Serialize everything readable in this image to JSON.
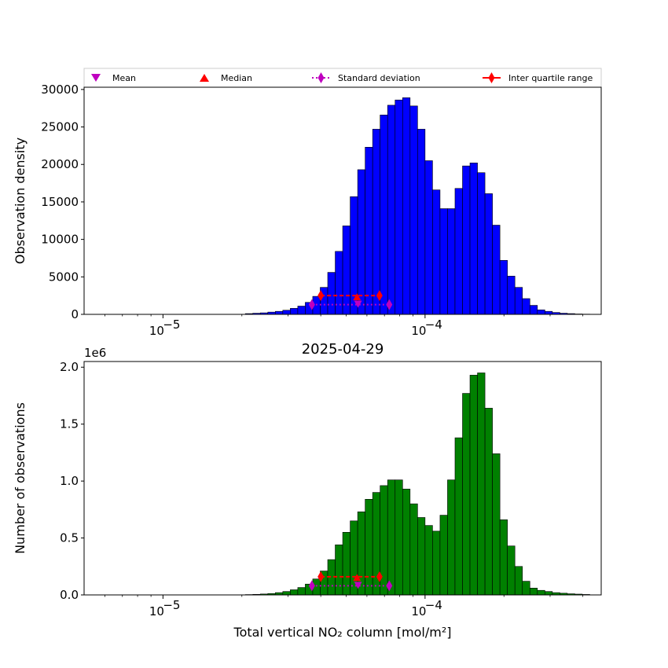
{
  "legend": {
    "location": "top, above upper panel",
    "entries": [
      {
        "label": "Mean",
        "marker": "triangle-down",
        "color": "#bf00bf"
      },
      {
        "label": "Median",
        "marker": "triangle-up",
        "color": "#ff0000"
      },
      {
        "label": "Standard deviation",
        "marker": "thin-diamond",
        "linestyle": "dotted",
        "color": "#bf00bf"
      },
      {
        "label": "Inter quartile range",
        "marker": "thin-diamond",
        "linestyle": "solid",
        "color": "#ff0000"
      }
    ]
  },
  "chart_data": [
    {
      "type": "bar",
      "title": "",
      "xlabel": "",
      "ylabel": "Observation density",
      "xscale": "log",
      "xlim": [
        5e-06,
        0.00047
      ],
      "ylim": [
        0,
        30300
      ],
      "yticks": [
        0,
        5000,
        10000,
        15000,
        20000,
        25000,
        30000
      ],
      "ytick_labels": [
        "0",
        "5000",
        "10000",
        "15000",
        "20000",
        "25000",
        "30000"
      ],
      "xticks": [
        1e-05,
        0.0001
      ],
      "xtick_labels": [
        "10",
        "10"
      ],
      "xtick_exponents": [
        "−5",
        "−4"
      ],
      "bar_color": "#0000ff",
      "edge_color": "#000000",
      "bins_per_decade": 35,
      "bins_start_exp": -5.2,
      "values": [
        0,
        0,
        0,
        0,
        0,
        0,
        0,
        0,
        0,
        0,
        0,
        0,
        0,
        0,
        0,
        0,
        0,
        0,
        100,
        150,
        200,
        300,
        400,
        550,
        800,
        1100,
        1600,
        2400,
        3600,
        5600,
        8400,
        11800,
        15700,
        19300,
        22300,
        24700,
        26600,
        27900,
        28600,
        28900,
        27800,
        24700,
        20500,
        16600,
        14100,
        14100,
        16800,
        19800,
        20200,
        18900,
        16100,
        11900,
        7200,
        5100,
        3600,
        2100,
        1200,
        600,
        400,
        250,
        150,
        100,
        50,
        30,
        0,
        0,
        0,
        0,
        0,
        0,
        0,
        0,
        0,
        0,
        0,
        0,
        0,
        0,
        0
      ],
      "stats": {
        "mean": {
          "x": 5.55e-05,
          "y": 1300
        },
        "median": {
          "x": 5.5e-05,
          "y": 2300
        },
        "std_dev": {
          "low": 3.7e-05,
          "high": 7.3e-05,
          "y": 1300
        },
        "iqr": {
          "q1": 4e-05,
          "q3": 6.7e-05,
          "y": 2500
        }
      }
    },
    {
      "type": "bar",
      "title": "2025-04-29",
      "xlabel": "Total vertical NO₂ column [mol/m²]",
      "ylabel": "Number of observations",
      "xscale": "log",
      "xlim": [
        5e-06,
        0.00047
      ],
      "ylim": [
        0,
        2.05
      ],
      "y_multiplier": "1e6",
      "yticks": [
        0,
        0.5,
        1.0,
        1.5,
        2.0
      ],
      "ytick_labels": [
        "0.0",
        "0.5",
        "1.0",
        "1.5",
        "2.0"
      ],
      "xticks": [
        1e-05,
        0.0001
      ],
      "xtick_labels": [
        "10",
        "10"
      ],
      "xtick_exponents": [
        "−5",
        "−4"
      ],
      "bar_color": "#008000",
      "edge_color": "#000000",
      "bins_per_decade": 35,
      "bins_start_exp": -5.2,
      "values": [
        0,
        0,
        0,
        0,
        0,
        0,
        0,
        0,
        0,
        0,
        0,
        0,
        0,
        0,
        0,
        0,
        0,
        0,
        0.003,
        0.005,
        0.008,
        0.012,
        0.02,
        0.03,
        0.045,
        0.065,
        0.095,
        0.14,
        0.21,
        0.31,
        0.44,
        0.55,
        0.65,
        0.73,
        0.84,
        0.9,
        0.96,
        1.01,
        1.01,
        0.93,
        0.8,
        0.68,
        0.61,
        0.56,
        0.7,
        1.01,
        1.38,
        1.77,
        1.93,
        1.95,
        1.64,
        1.24,
        0.66,
        0.43,
        0.25,
        0.12,
        0.06,
        0.04,
        0.03,
        0.02,
        0.015,
        0.01,
        0.007,
        0.004,
        0,
        0,
        0,
        0,
        0,
        0,
        0,
        0,
        0,
        0,
        0,
        0,
        0,
        0,
        0
      ],
      "stats": {
        "mean": {
          "x": 5.55e-05,
          "y": 0.08
        },
        "median": {
          "x": 5.5e-05,
          "y": 0.15
        },
        "std_dev": {
          "low": 3.7e-05,
          "high": 7.3e-05,
          "y": 0.08
        },
        "iqr": {
          "q1": 4e-05,
          "q3": 6.7e-05,
          "y": 0.16
        }
      }
    }
  ]
}
